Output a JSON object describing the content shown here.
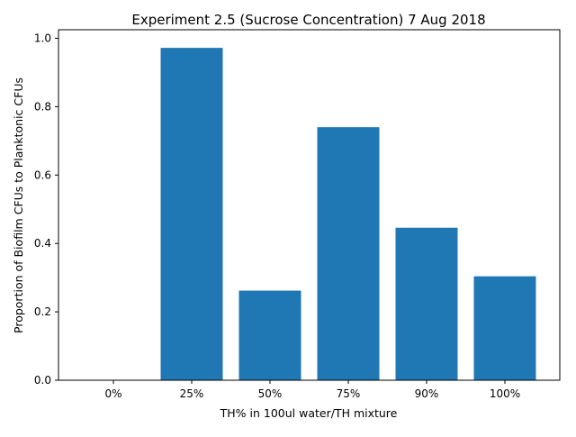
{
  "chart_data": {
    "type": "bar",
    "title": "Experiment 2.5 (Sucrose Concentration) 7 Aug 2018",
    "xlabel": "TH% in 100ul water/TH mixture",
    "ylabel": "Proportion of Biofilm CFUs to Planktonic CFUs",
    "categories": [
      "0%",
      "25%",
      "50%",
      "75%",
      "90%",
      "100%"
    ],
    "values": [
      0.0,
      0.972,
      0.262,
      0.74,
      0.446,
      0.304
    ],
    "ylim": [
      0,
      1.025
    ],
    "yticks": [
      "0.0",
      "0.2",
      "0.4",
      "0.6",
      "0.8",
      "1.0"
    ],
    "bar_color": "#1f77b4",
    "grid": false
  }
}
